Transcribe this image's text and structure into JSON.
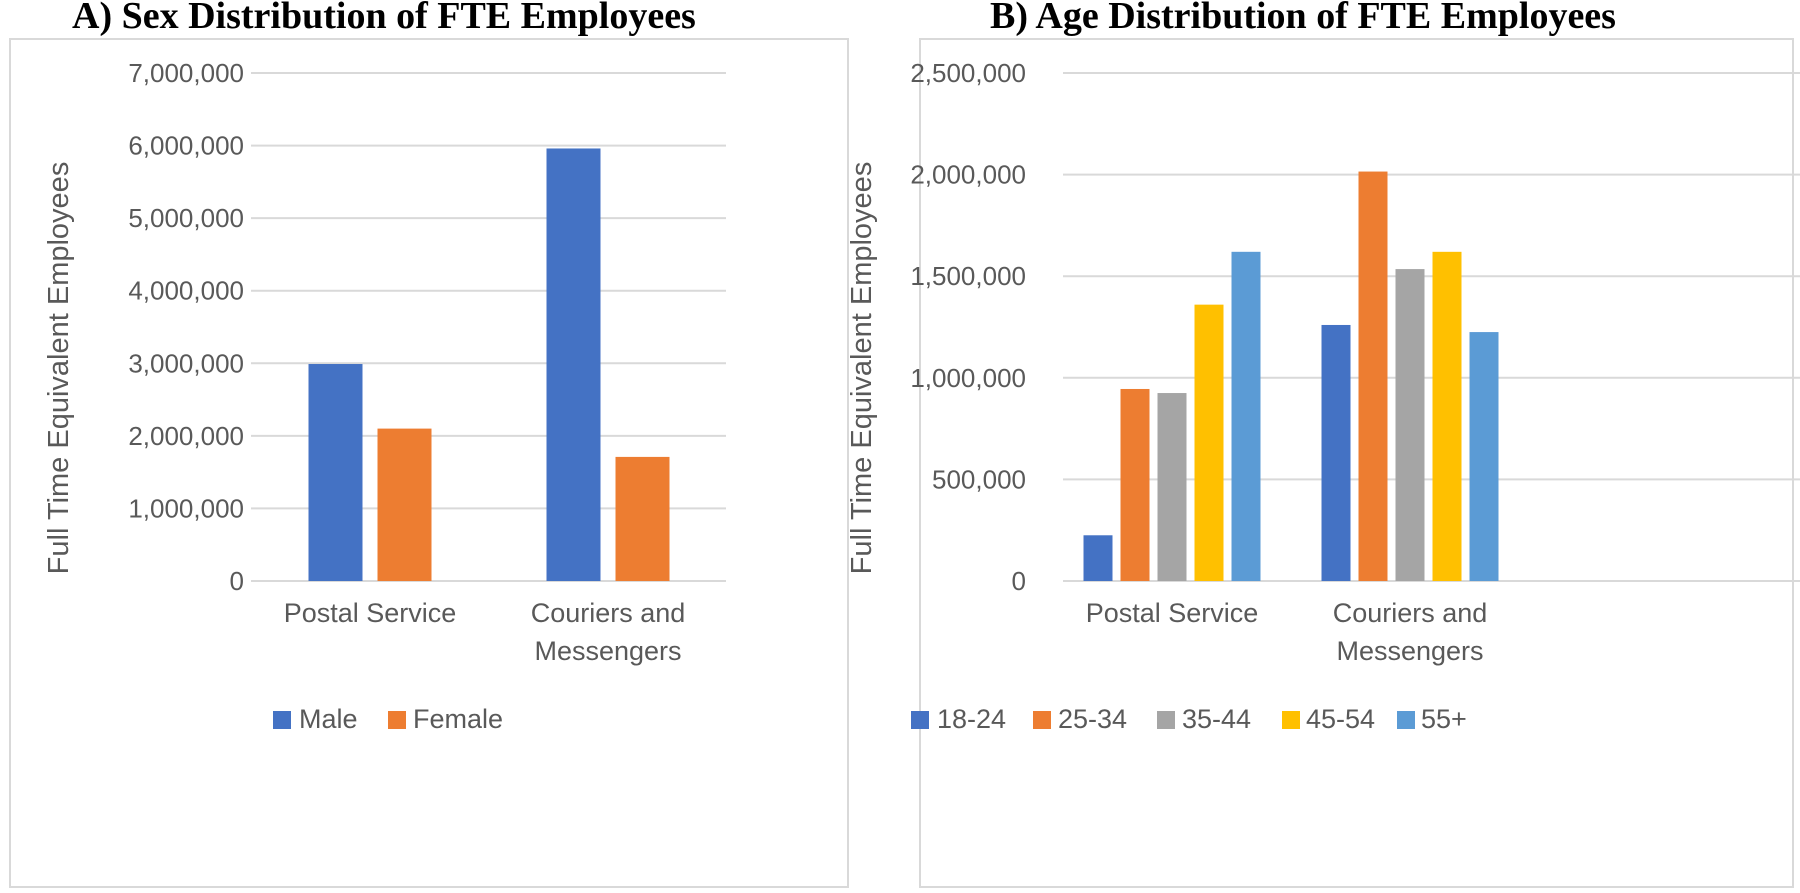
{
  "chart_data": [
    {
      "type": "bar",
      "title": "A)  Sex Distribution of FTE Employees",
      "xlabel": "",
      "ylabel": "Full Time Equivalent Employees",
      "ylim": [
        0,
        7000000
      ],
      "yticks": [
        0,
        1000000,
        2000000,
        3000000,
        4000000,
        5000000,
        6000000,
        7000000
      ],
      "ytick_labels": [
        "0",
        "1,000,000",
        "2,000,000",
        "3,000,000",
        "4,000,000",
        "5,000,000",
        "6,000,000",
        "7,000,000"
      ],
      "categories": [
        [
          "Postal Service"
        ],
        [
          "Couriers and",
          "Messengers"
        ]
      ],
      "series": [
        {
          "name": "Male",
          "color": "#4472c4",
          "values": [
            2990000,
            5960000
          ]
        },
        {
          "name": "Female",
          "color": "#ed7d31",
          "values": [
            2100000,
            1710000
          ]
        }
      ],
      "grid": true,
      "legend": "bottom"
    },
    {
      "type": "bar",
      "title": "B)  Age Distribution of FTE Employees",
      "xlabel": "",
      "ylabel": "Full Time Equivalent Employees",
      "ylim": [
        0,
        2500000
      ],
      "yticks": [
        0,
        500000,
        1000000,
        1500000,
        2000000,
        2500000
      ],
      "ytick_labels": [
        "0",
        "500,000",
        "1,000,000",
        "1,500,000",
        "2,000,000",
        "2,500,000"
      ],
      "categories": [
        [
          "Postal Service"
        ],
        [
          "Couriers and",
          "Messengers"
        ]
      ],
      "series": [
        {
          "name": "18-24",
          "color": "#4472c4",
          "values": [
            225000,
            1260000
          ]
        },
        {
          "name": "25-34",
          "color": "#ed7d31",
          "values": [
            945000,
            2015000
          ]
        },
        {
          "name": "35-44",
          "color": "#a5a5a5",
          "values": [
            925000,
            1535000
          ]
        },
        {
          "name": "45-54",
          "color": "#ffc000",
          "values": [
            1360000,
            1620000
          ]
        },
        {
          "name": "55+",
          "color": "#5b9bd5",
          "values": [
            1620000,
            1225000
          ]
        }
      ],
      "grid": true,
      "legend": "bottom"
    }
  ],
  "style": {
    "grid_color": "#d9d9d9",
    "text_color": "#595959"
  }
}
